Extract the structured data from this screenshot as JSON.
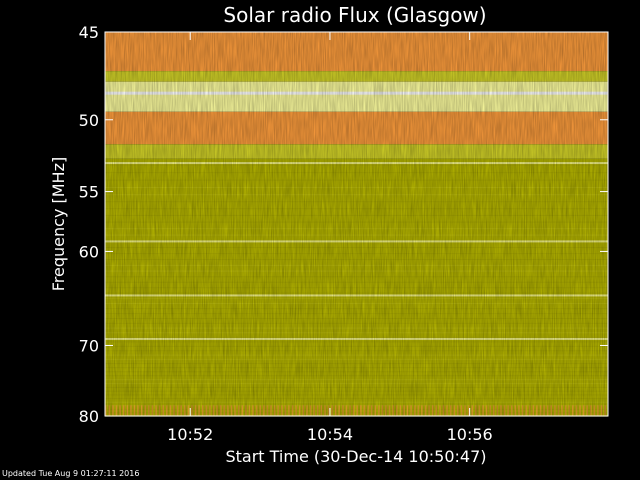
{
  "chart_data": {
    "type": "heatmap",
    "title": "Solar radio Flux (Glasgow)",
    "xlabel": "Start Time (30-Dec-14 10:50:47)",
    "ylabel": "Frequency [MHz]",
    "x_tick_labels": [
      "10:52",
      "10:54",
      "10:56"
    ],
    "x_ticks_minutes": [
      52,
      54,
      56
    ],
    "xlim_minutes": [
      50.78,
      57.98
    ],
    "y_tick_labels": [
      "45",
      "50",
      "55",
      "60",
      "70",
      "80"
    ],
    "y_ticks": [
      45,
      50,
      55,
      60,
      70,
      80
    ],
    "ylim": [
      45,
      80
    ],
    "y_scale": "reciprocal",
    "colors": {
      "background": "#000000",
      "low_flux": "#b8b800",
      "mid_flux": "#d4d428",
      "high_flux": "#ff9e3d",
      "very_high_flux": "#ffffa0",
      "saturated": "#ffffff"
    },
    "bands": [
      {
        "f0": 45,
        "f1": 47.1,
        "level": "high"
      },
      {
        "f0": 47.1,
        "f1": 47.7,
        "level": "mid"
      },
      {
        "f0": 47.7,
        "f1": 49.5,
        "level": "very_high"
      },
      {
        "f0": 49.5,
        "f1": 51.6,
        "level": "high"
      },
      {
        "f0": 51.6,
        "f1": 52.6,
        "level": "mid"
      },
      {
        "f0": 52.6,
        "f1": 80,
        "level": "low"
      }
    ],
    "bright_lines_mhz": [
      48.4,
      52.9,
      59.1,
      64.3,
      69.2
    ]
  },
  "footer_text": "Updated Tue Aug  9 01:27:11 2016"
}
